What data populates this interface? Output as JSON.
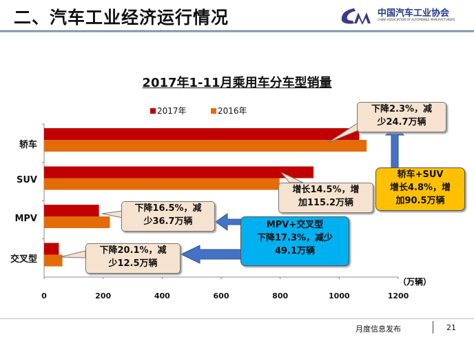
{
  "slide": {
    "title": "二、汽车工业经济运行情况",
    "logo_text_cn": "中国汽车工业协会",
    "logo_text_en": "CHINA ASSOCIATION OF AUTOMOBILE MANUFACTURERS",
    "footer": "月度信息发布",
    "page": "21"
  },
  "chart_data": {
    "type": "bar",
    "orientation": "horizontal",
    "title": "2017年1-11月乘用车分车型销量",
    "categories": [
      "轿车",
      "SUV",
      "MPV",
      "交叉型"
    ],
    "series": [
      {
        "name": "2017年",
        "color": "#c00000",
        "values": [
          1068,
          913,
          186,
          50
        ]
      },
      {
        "name": "2016年",
        "color": "#e36c09",
        "values": [
          1093,
          798,
          223,
          62
        ]
      }
    ],
    "xlim": [
      0,
      1200
    ],
    "xticks": [
      "0",
      "200",
      "400",
      "600",
      "800",
      "1000",
      "1200"
    ],
    "unit_label": "（万辆）",
    "legend": "top",
    "grid": false,
    "annotations": [
      {
        "text1": "下降2.3%，减",
        "text2": "少24.7万辆"
      },
      {
        "text1": "增长14.5%，增",
        "text2": "加115.2万辆"
      },
      {
        "text1": "下降16.5%，减",
        "text2": "少36.7万辆"
      },
      {
        "text1": "下降20.1%，减",
        "text2": "少12.5万辆"
      },
      {
        "text1": "轿车+SUV",
        "text2": "增长4.8%，增",
        "text3": "加90.5万辆",
        "color": "#ffc000"
      },
      {
        "text1": "MPV+交叉型",
        "text2": "下降17.3%，减少",
        "text3": "49.1万辆",
        "color": "#00b0f0"
      }
    ],
    "arrow_color": "#4472c4"
  }
}
